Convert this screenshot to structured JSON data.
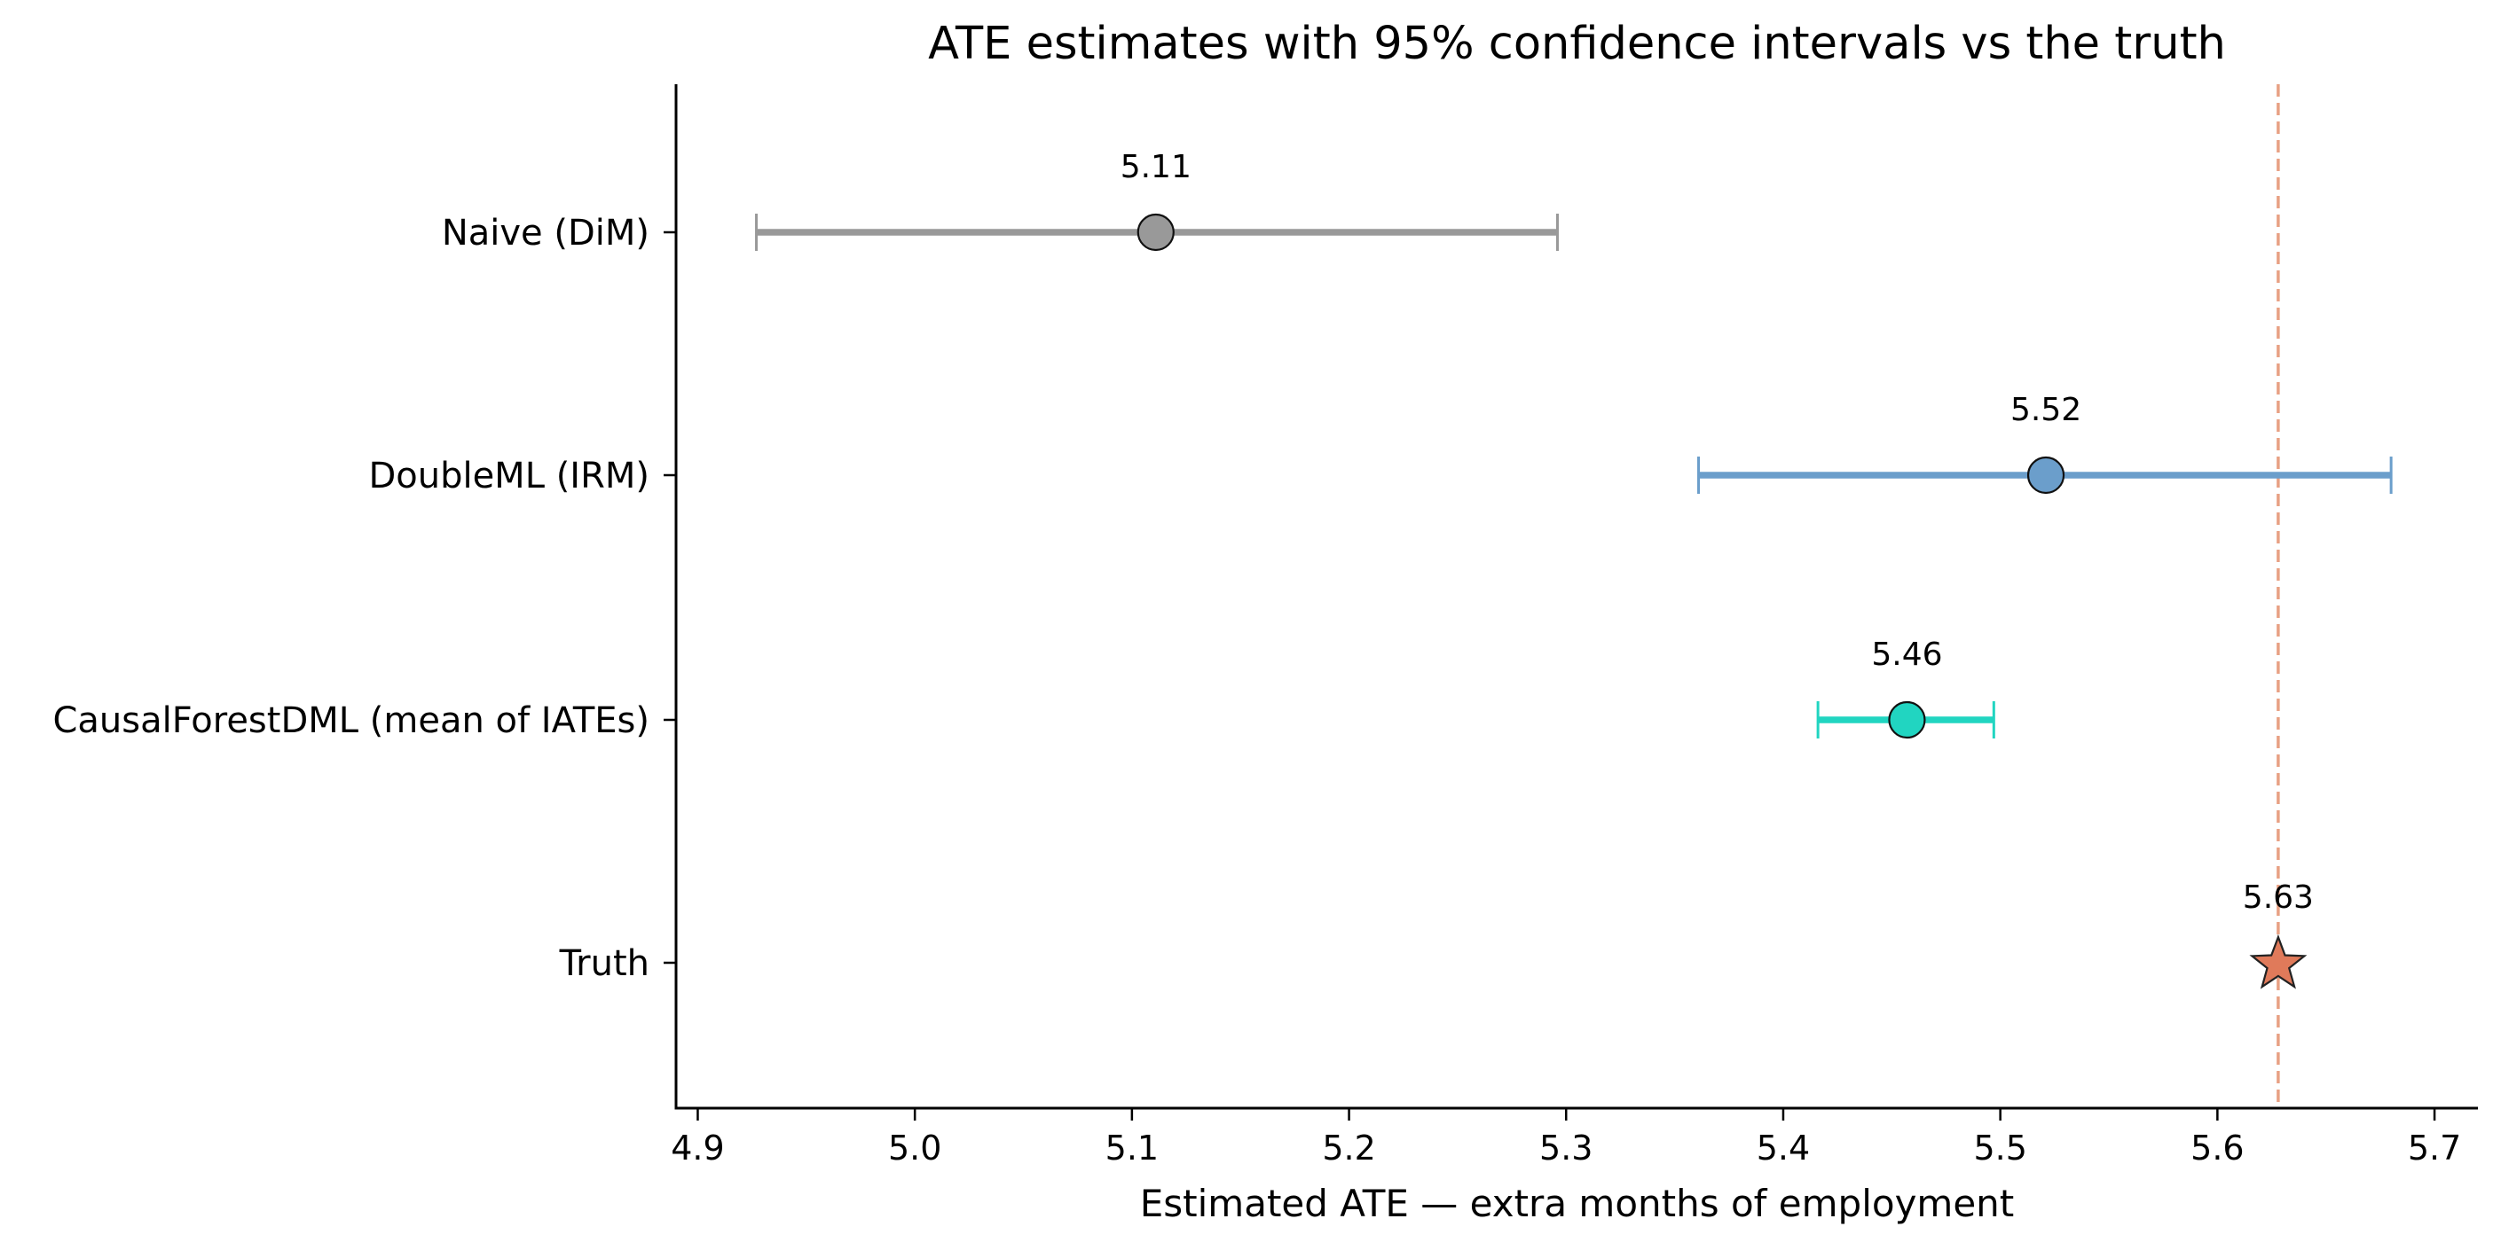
{
  "chart_data": {
    "type": "forest",
    "title": "ATE estimates with 95% confidence intervals vs the truth",
    "xlabel": "Estimated ATE — extra months of employment",
    "ylabel": "",
    "xlim": [
      4.89,
      5.72
    ],
    "xticks": [
      4.9,
      5.0,
      5.1,
      5.2,
      5.3,
      5.4,
      5.5,
      5.6,
      5.7
    ],
    "xtick_labels": [
      "4.9",
      "5.0",
      "5.1",
      "5.2",
      "5.3",
      "5.4",
      "5.5",
      "5.6",
      "5.7"
    ],
    "grid": false,
    "reference_line": {
      "x": 5.628,
      "style": "dashed",
      "color": "#e8a184"
    },
    "estimates": [
      {
        "label": "Naive (DiM)",
        "estimate": 5.111,
        "ci": [
          4.927,
          5.296
        ],
        "value_label": "5.11",
        "marker": "circle",
        "color": "#999999"
      },
      {
        "label": "DoubleML (IRM)",
        "estimate": 5.521,
        "ci": [
          5.361,
          5.68
        ],
        "value_label": "5.52",
        "marker": "circle",
        "color": "#6b9ecb"
      },
      {
        "label": "CausalForestDML (mean of IATEs)",
        "estimate": 5.457,
        "ci": [
          5.416,
          5.497
        ],
        "value_label": "5.46",
        "marker": "circle",
        "color": "#21d5c1"
      },
      {
        "label": "Truth",
        "estimate": 5.628,
        "ci": null,
        "value_label": "5.63",
        "marker": "star",
        "color": "#e07a5a"
      }
    ]
  }
}
